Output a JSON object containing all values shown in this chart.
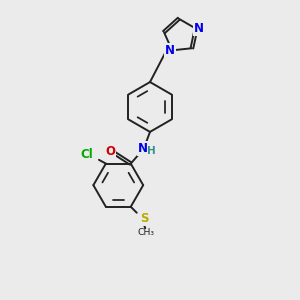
{
  "bg_color": "#ebebeb",
  "bond_color": "#222222",
  "bond_width": 1.4,
  "dbo": 0.06,
  "atom_colors": {
    "N": "#0000ee",
    "O": "#cc0000",
    "Cl": "#00aa00",
    "S": "#bbaa00",
    "H": "#3a9090"
  },
  "fs": 8.5,
  "xlim": [
    0,
    10
  ],
  "ylim": [
    0,
    13
  ]
}
